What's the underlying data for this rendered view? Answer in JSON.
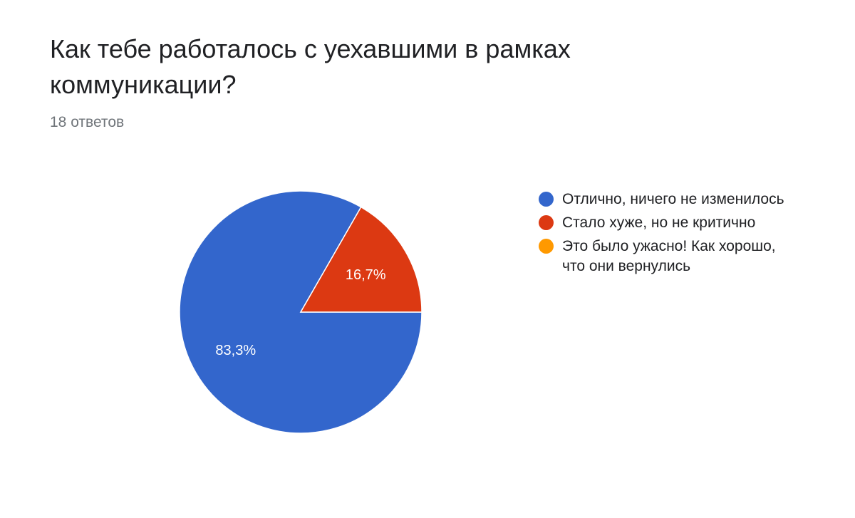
{
  "header": {
    "title": "Как тебе работалось с уехавшими в рамках коммуникации?",
    "responses": "18 ответов"
  },
  "chart_data": {
    "type": "pie",
    "categories": [
      "Отлично, ничего не изменилось",
      "Стало хуже, но не критично",
      "Это было ужасно! Как хорошо, что они вернулись"
    ],
    "values": [
      83.3,
      16.7,
      0
    ],
    "value_labels": [
      "83,3%",
      "16,7%",
      ""
    ],
    "colors": [
      "#3366cc",
      "#dc3912",
      "#ff9900"
    ],
    "legend_position": "right"
  }
}
